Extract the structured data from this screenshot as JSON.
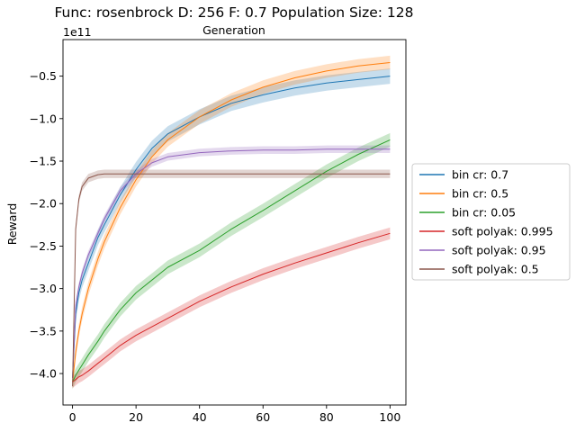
{
  "chart_data": {
    "type": "line",
    "title": "Func: rosenbrock D: 256 F: 0.7 Population Size: 128",
    "subtitle": "Generation",
    "xlabel": "",
    "ylabel": "Reward",
    "y_offset_label": "1e11",
    "xlim": [
      -3,
      105
    ],
    "ylim": [
      -4.37,
      -0.07
    ],
    "x_ticks": [
      0,
      20,
      40,
      60,
      80,
      100
    ],
    "y_ticks": [
      -4.0,
      -3.5,
      -3.0,
      -2.5,
      -2.0,
      -1.5,
      -1.0,
      -0.5
    ],
    "x_tick_labels": [
      "0",
      "20",
      "40",
      "60",
      "80",
      "100"
    ],
    "y_tick_labels": [
      "−4.0",
      "−3.5",
      "−3.0",
      "−2.5",
      "−2.0",
      "−1.5",
      "−1.0",
      "−0.5"
    ],
    "grid": false,
    "legend_position": "outside-right",
    "x": [
      0,
      1,
      2,
      3,
      5,
      8,
      10,
      15,
      20,
      25,
      30,
      40,
      50,
      60,
      70,
      80,
      90,
      100
    ],
    "series": [
      {
        "name": "bin cr: 0.7",
        "color": "#1f77b4",
        "values": [
          -4.05,
          -3.3,
          -3.05,
          -2.9,
          -2.7,
          -2.4,
          -2.25,
          -1.9,
          -1.6,
          -1.35,
          -1.18,
          -0.98,
          -0.82,
          -0.72,
          -0.64,
          -0.58,
          -0.54,
          -0.5
        ],
        "band": 0.09
      },
      {
        "name": "bin cr: 0.5",
        "color": "#ff7f0e",
        "values": [
          -4.1,
          -3.75,
          -3.5,
          -3.3,
          -3.0,
          -2.65,
          -2.45,
          -2.05,
          -1.72,
          -1.45,
          -1.25,
          -0.98,
          -0.78,
          -0.63,
          -0.52,
          -0.44,
          -0.38,
          -0.34
        ],
        "band": 0.08
      },
      {
        "name": "bin cr: 0.05",
        "color": "#2ca02c",
        "values": [
          -4.1,
          -4.02,
          -3.96,
          -3.9,
          -3.78,
          -3.62,
          -3.5,
          -3.25,
          -3.05,
          -2.9,
          -2.75,
          -2.55,
          -2.3,
          -2.08,
          -1.85,
          -1.62,
          -1.42,
          -1.25
        ],
        "band": 0.08
      },
      {
        "name": "soft polyak: 0.995",
        "color": "#d62728",
        "values": [
          -4.1,
          -4.07,
          -4.04,
          -4.02,
          -3.97,
          -3.88,
          -3.82,
          -3.67,
          -3.55,
          -3.45,
          -3.35,
          -3.15,
          -2.98,
          -2.83,
          -2.7,
          -2.58,
          -2.46,
          -2.35
        ],
        "band": 0.07
      },
      {
        "name": "soft polyak: 0.95",
        "color": "#9467bd",
        "values": [
          -4.05,
          -3.2,
          -2.98,
          -2.82,
          -2.6,
          -2.35,
          -2.18,
          -1.85,
          -1.65,
          -1.52,
          -1.45,
          -1.4,
          -1.38,
          -1.37,
          -1.37,
          -1.36,
          -1.36,
          -1.36
        ],
        "band": 0.045
      },
      {
        "name": "soft polyak: 0.5",
        "color": "#8c564b",
        "values": [
          -4.15,
          -2.3,
          -1.95,
          -1.8,
          -1.7,
          -1.66,
          -1.65,
          -1.65,
          -1.65,
          -1.65,
          -1.65,
          -1.65,
          -1.65,
          -1.65,
          -1.65,
          -1.65,
          -1.65,
          -1.65
        ],
        "band": 0.05
      }
    ]
  }
}
